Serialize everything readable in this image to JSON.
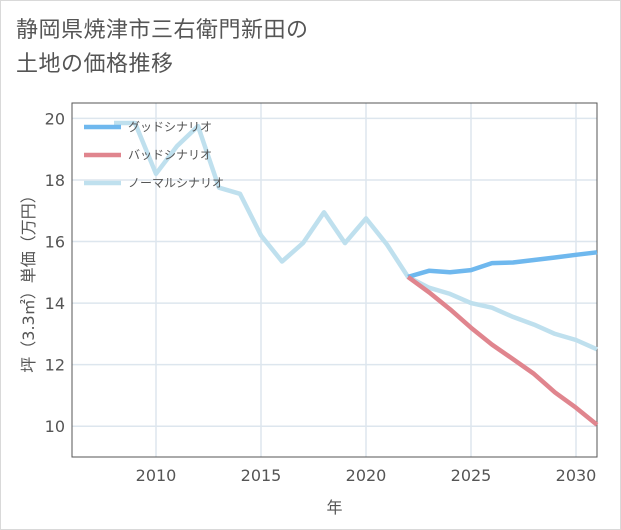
{
  "title_line1": "静岡県焼津市三右衛門新田の",
  "title_line2": "土地の価格推移",
  "chart_data": {
    "type": "line",
    "title": "静岡県焼津市三右衛門新田の土地の価格推移",
    "xlabel": "年",
    "ylabel": "坪（3.3㎡）単価（万円）",
    "xlim": [
      2006,
      2031
    ],
    "ylim": [
      9,
      20.5
    ],
    "xticks": [
      2010,
      2015,
      2020,
      2025,
      2030
    ],
    "yticks": [
      10,
      12,
      14,
      16,
      18,
      20
    ],
    "grid": true,
    "legend_position": "top-left",
    "series": [
      {
        "name": "グッドシナリオ",
        "color": "#6fb8ee",
        "x": [
          2022,
          2023,
          2024,
          2025,
          2026,
          2027,
          2028,
          2029,
          2030,
          2031
        ],
        "values": [
          14.85,
          15.05,
          15.0,
          15.07,
          15.3,
          15.32,
          15.4,
          15.48,
          15.57,
          15.65
        ]
      },
      {
        "name": "バッドシナリオ",
        "color": "#e0858e",
        "x": [
          2022,
          2023,
          2024,
          2025,
          2026,
          2027,
          2028,
          2029,
          2030,
          2031
        ],
        "values": [
          14.85,
          14.35,
          13.8,
          13.2,
          12.65,
          12.18,
          11.7,
          11.1,
          10.6,
          10.05
        ]
      },
      {
        "name": "ノーマルシナリオ",
        "color": "#bfe0ee",
        "x": [
          2008,
          2009,
          2010,
          2011,
          2012,
          2013,
          2014,
          2015,
          2016,
          2017,
          2018,
          2019,
          2020,
          2021,
          2022,
          2023,
          2024,
          2025,
          2026,
          2027,
          2028,
          2029,
          2030,
          2031
        ],
        "values": [
          19.85,
          19.85,
          18.2,
          19.1,
          19.75,
          17.75,
          17.55,
          16.2,
          15.35,
          15.95,
          16.95,
          15.95,
          16.75,
          15.9,
          14.85,
          14.5,
          14.3,
          14.0,
          13.85,
          13.55,
          13.3,
          13.0,
          12.8,
          12.5
        ]
      }
    ]
  }
}
